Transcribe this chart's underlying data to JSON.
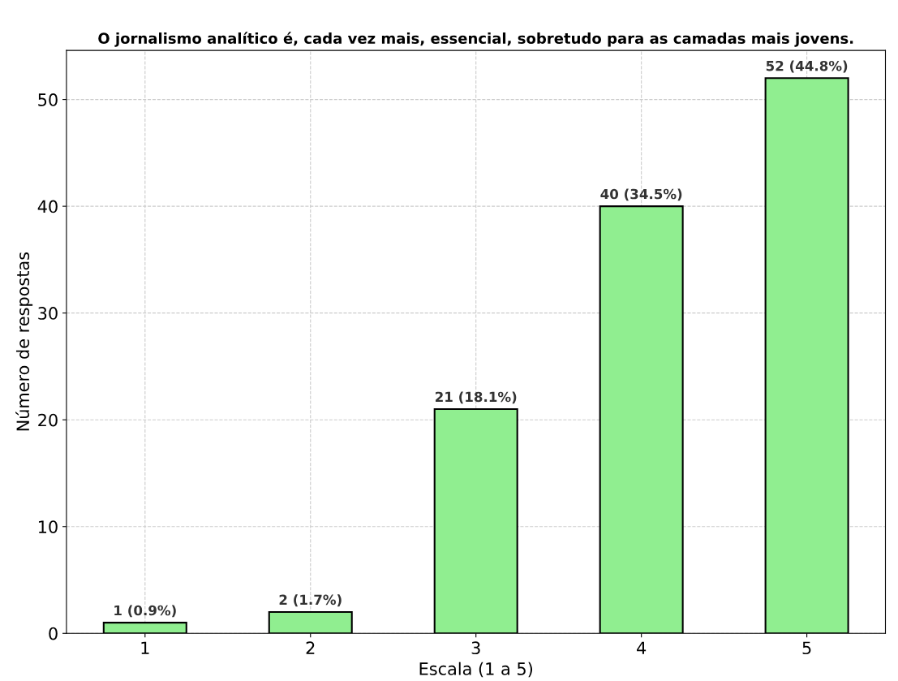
{
  "chart_data": {
    "type": "bar",
    "title": "O jornalismo analítico é, cada vez mais, essencial, sobretudo para as camadas mais jovens.",
    "xlabel": "Escala (1 a 5)",
    "ylabel": "Número de respostas",
    "categories": [
      "1",
      "2",
      "3",
      "4",
      "5"
    ],
    "values": [
      1,
      2,
      21,
      40,
      52
    ],
    "value_labels": [
      "1 (0.9%)",
      "2 (1.7%)",
      "21 (18.1%)",
      "40 (34.5%)",
      "52 (44.8%)"
    ],
    "color": "#90ee90",
    "ylim": [
      0,
      54.6
    ],
    "yticks": [
      0,
      10,
      20,
      30,
      40,
      50
    ],
    "grid": true
  }
}
